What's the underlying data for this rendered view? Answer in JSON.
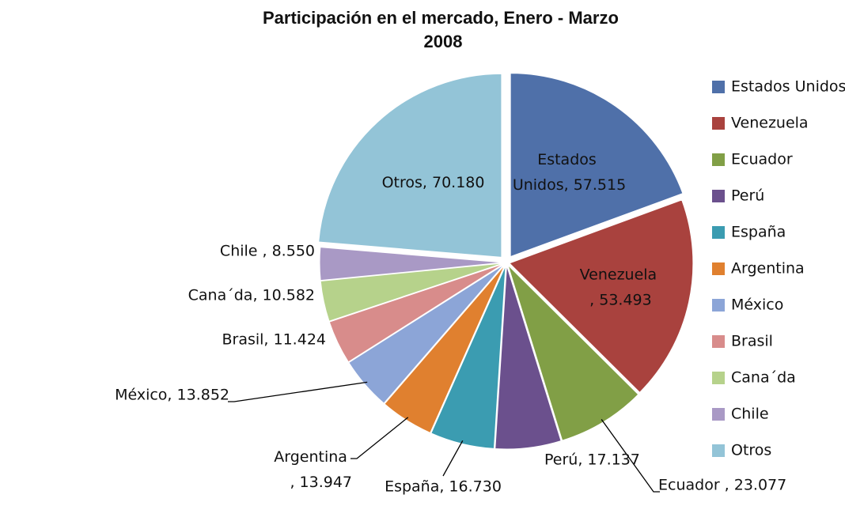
{
  "chart_data": {
    "type": "pie",
    "title": "Participación en el mercado, Enero - Marzo 2008",
    "categories": [
      "Estados Unidos",
      "Venezuela",
      "Ecuador",
      "Perú",
      "España",
      "Argentina",
      "México",
      "Brasil",
      "Cana´da",
      "Chile",
      "Otros"
    ],
    "values": [
      57.515,
      53.493,
      23.077,
      17.137,
      16.73,
      13.947,
      13.852,
      11.424,
      10.582,
      8.55,
      70.18
    ],
    "value_labels": [
      "Estados Unidos, 57.515",
      "Venezuela , 53.493",
      "Ecuador , 23.077",
      "Perú, 17.137",
      "España, 16.730",
      "Argentina , 13.947",
      "México, 13.852",
      "Brasil, 11.424",
      "Cana´da, 10.582",
      "Chile , 8.550",
      "Otros, 70.180"
    ],
    "colors": [
      "#4f70a9",
      "#a9423e",
      "#819f46",
      "#6b508d",
      "#3b9cb1",
      "#e0802f",
      "#8ca5d7",
      "#d88c8b",
      "#b6d28b",
      "#a999c5",
      "#93c4d7"
    ],
    "legend": "right"
  }
}
